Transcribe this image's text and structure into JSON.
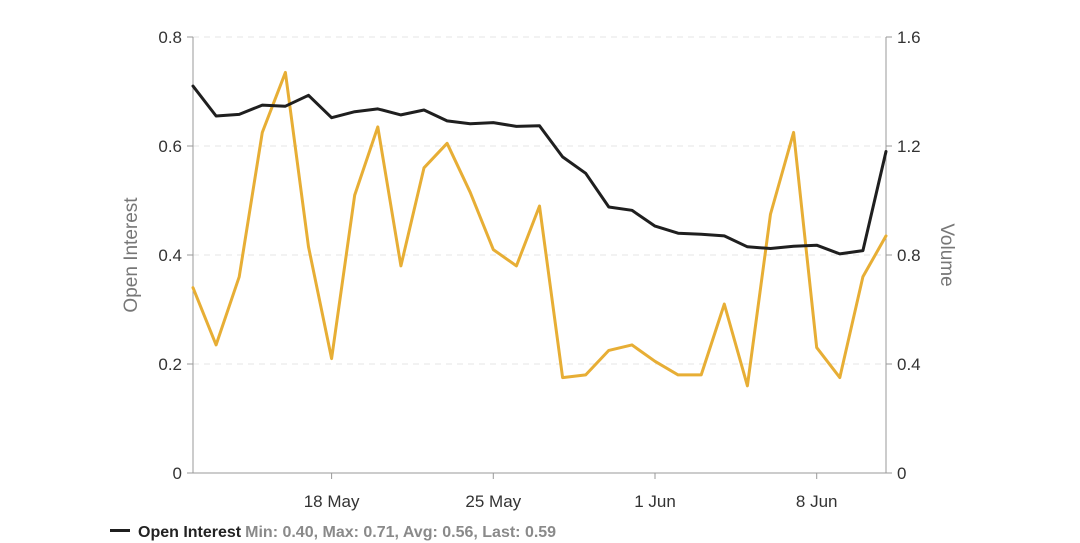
{
  "chart_data": {
    "type": "line",
    "xlabel": "",
    "ylabel": "Open Interest",
    "y2label": "Volume",
    "ylim": [
      0,
      0.8
    ],
    "y2lim": [
      0,
      1.6
    ],
    "yticks": [
      "0",
      "0.2",
      "0.4",
      "0.6",
      "0.8"
    ],
    "y2ticks": [
      "0",
      "0.4",
      "0.8",
      "1.2",
      "1.6"
    ],
    "xticks": [
      {
        "label": "18 May",
        "index": 6
      },
      {
        "label": "25 May",
        "index": 13
      },
      {
        "label": "1 Jun",
        "index": 20
      },
      {
        "label": "8 Jun",
        "index": 27
      }
    ],
    "grid": true,
    "legend_position": "bottom",
    "series": [
      {
        "name": "Open Interest",
        "axis": "left",
        "color": "#1f1f1f",
        "values": [
          0.71,
          0.655,
          0.658,
          0.675,
          0.673,
          0.693,
          0.652,
          0.663,
          0.668,
          0.657,
          0.666,
          0.646,
          0.641,
          0.643,
          0.636,
          0.637,
          0.58,
          0.55,
          0.488,
          0.482,
          0.453,
          0.44,
          0.438,
          0.435,
          0.415,
          0.412,
          0.416,
          0.418,
          0.402,
          0.408,
          0.59
        ]
      },
      {
        "name": "Volume",
        "axis": "right",
        "color": "#e7ae35",
        "values": [
          0.68,
          0.47,
          0.72,
          1.25,
          1.47,
          0.83,
          0.42,
          1.02,
          1.27,
          0.76,
          1.12,
          1.21,
          1.03,
          0.82,
          0.76,
          0.98,
          0.35,
          0.36,
          0.45,
          0.47,
          0.41,
          0.36,
          0.36,
          0.62,
          0.32,
          0.95,
          1.25,
          0.46,
          0.35,
          0.72,
          0.87
        ]
      }
    ],
    "legend_entry": {
      "name": "Open Interest",
      "stats": "Min: 0.40, Max: 0.71, Avg: 0.56, Last: 0.59"
    }
  }
}
